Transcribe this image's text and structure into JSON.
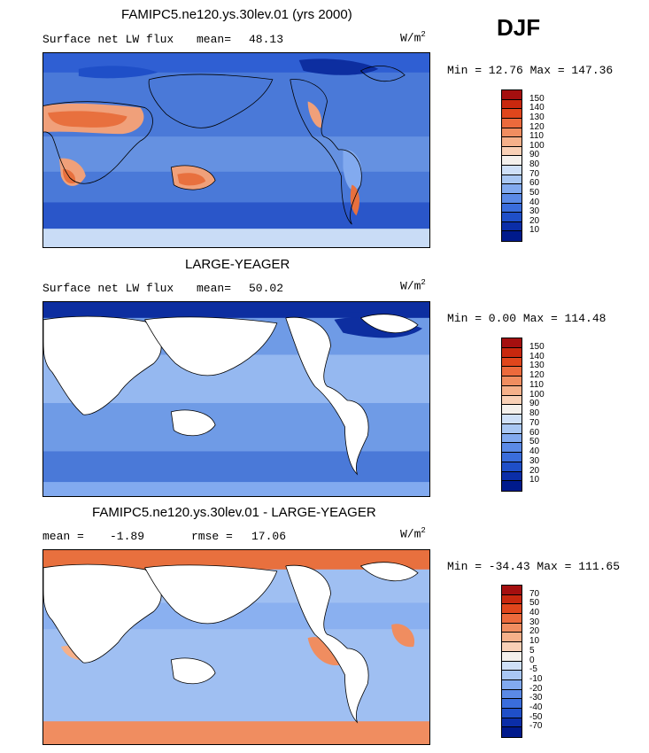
{
  "season": "DJF",
  "units_base": "W/m",
  "units_exp": "2",
  "panels": [
    {
      "title": "FAMIPC5.ne120.ys.30lev.01 (yrs 2000)",
      "left_label": "Surface net LW flux",
      "mean_label": "mean=",
      "mean_value": "48.13",
      "minmax": "Min =  12.76 Max = 147.36",
      "map_base": "#4a79d8",
      "land_white": false,
      "colorbar": {
        "labels": [
          "150",
          "140",
          "130",
          "120",
          "110",
          "100",
          "90",
          "80",
          "70",
          "60",
          "50",
          "40",
          "30",
          "20",
          "10"
        ],
        "colors": [
          "#a50f0f",
          "#c8280e",
          "#e0461c",
          "#ec6a3c",
          "#f08d60",
          "#f5b08a",
          "#f9d0b6",
          "#f4f0ec",
          "#cfe0f8",
          "#a9c7f3",
          "#82aaef",
          "#5b8ae6",
          "#3a6ddc",
          "#1f4fc8",
          "#0b2ea8",
          "#001a8c"
        ]
      },
      "features": [
        {
          "t": "band",
          "fill": "#2f5fd3"
        },
        {
          "t": "warm",
          "fill": "#f0a07a"
        },
        {
          "t": "warm2",
          "fill": "#e8703e"
        },
        {
          "t": "cold",
          "fill": "#0d2ea0"
        }
      ]
    },
    {
      "title": "LARGE-YEAGER",
      "left_label": "Surface net LW flux",
      "mean_label": "mean=",
      "mean_value": "50.02",
      "minmax": "Min =   0.00 Max = 114.48",
      "map_base": "#6f9be6",
      "land_white": true,
      "colorbar": {
        "labels": [
          "150",
          "140",
          "130",
          "120",
          "110",
          "100",
          "90",
          "80",
          "70",
          "60",
          "50",
          "40",
          "30",
          "20",
          "10"
        ],
        "colors": [
          "#a50f0f",
          "#c8280e",
          "#e0461c",
          "#ec6a3c",
          "#f08d60",
          "#f5b08a",
          "#f9d0b6",
          "#f4f0ec",
          "#cfe0f8",
          "#a9c7f3",
          "#82aaef",
          "#5b8ae6",
          "#3a6ddc",
          "#1f4fc8",
          "#0b2ea8",
          "#001a8c"
        ]
      },
      "features": []
    },
    {
      "title": "FAMIPC5.ne120.ys.30lev.01 - LARGE-YEAGER",
      "left_label": "mean =",
      "mean_label": "rmse =",
      "mean_value": "17.06",
      "mean_extra": "-1.89",
      "minmax": "Min = -34.43 Max = 111.65",
      "map_base": "#9fbff2",
      "land_white": true,
      "colorbar": {
        "labels": [
          "70",
          "50",
          "40",
          "30",
          "20",
          "10",
          "5",
          "0",
          "-5",
          "-10",
          "-20",
          "-30",
          "-40",
          "-50",
          "-70"
        ],
        "colors": [
          "#a50f0f",
          "#c8280e",
          "#e0461c",
          "#ec6a3c",
          "#f08d60",
          "#f5b08a",
          "#f9d0b6",
          "#f4f0ec",
          "#cfe0f8",
          "#a9c7f3",
          "#82aaef",
          "#5b8ae6",
          "#3a6ddc",
          "#1f4fc8",
          "#0b2ea8",
          "#001a8c"
        ]
      },
      "features": []
    }
  ]
}
